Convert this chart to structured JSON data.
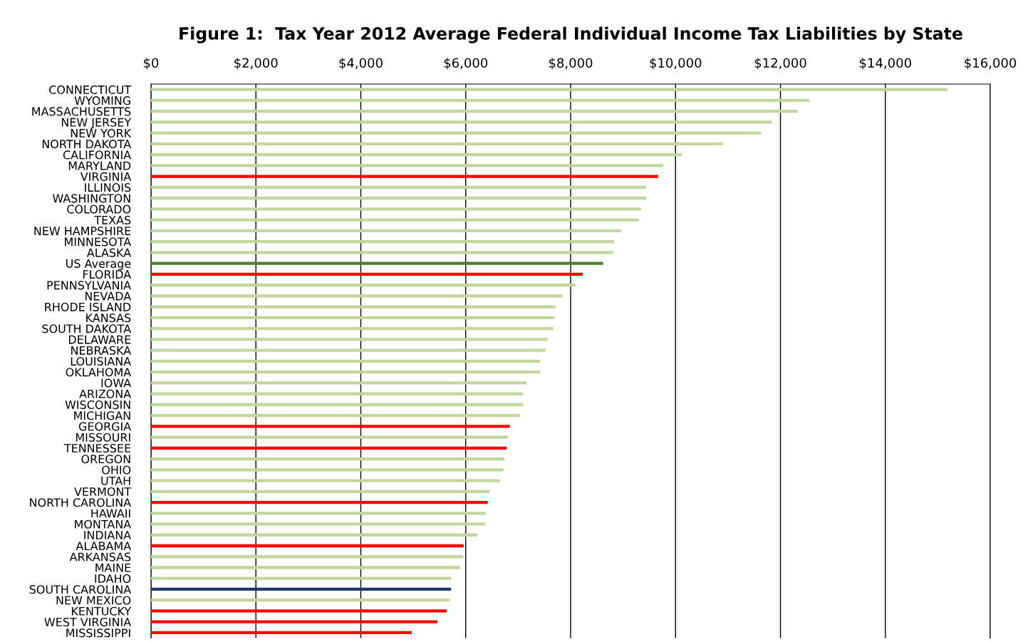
{
  "chart_data": {
    "type": "bar",
    "orientation": "horizontal",
    "title": "Figure 1:  Tax Year 2012 Average Federal Individual Income Tax Liabilities by State",
    "categories": [
      "CONNECTICUT",
      "WYOMING",
      "MASSACHUSETTS",
      "NEW JERSEY",
      "NEW YORK",
      "NORTH DAKOTA",
      "CALIFORNIA",
      "MARYLAND",
      "VIRGINIA",
      "ILLINOIS",
      "WASHINGTON",
      "COLORADO",
      "TEXAS",
      "NEW HAMPSHIRE",
      "MINNESOTA",
      "ALASKA",
      "US Average",
      "FLORIDA",
      "PENNSYLVANIA",
      "NEVADA",
      "RHODE ISLAND",
      "KANSAS",
      "SOUTH DAKOTA",
      "DELAWARE",
      "NEBRASKA",
      "LOUISIANA",
      "OKLAHOMA",
      "IOWA",
      "ARIZONA",
      "WISCONSIN",
      "MICHIGAN",
      "GEORGIA",
      "MISSOURI",
      "TENNESSEE",
      "OREGON",
      "OHIO",
      "UTAH",
      "VERMONT",
      "NORTH CAROLINA",
      "HAWAII",
      "MONTANA",
      "INDIANA",
      "ALABAMA",
      "ARKANSAS",
      "MAINE",
      "IDAHO",
      "SOUTH CAROLINA",
      "NEW MEXICO",
      "KENTUCKY",
      "WEST VIRGINIA",
      "MISSISSIPPI"
    ],
    "values": [
      15180,
      12550,
      12330,
      11830,
      11630,
      10910,
      10120,
      9760,
      9670,
      9440,
      9440,
      9340,
      9300,
      8960,
      8830,
      8810,
      8620,
      8230,
      8090,
      7840,
      7710,
      7690,
      7670,
      7560,
      7520,
      7420,
      7420,
      7160,
      7090,
      7090,
      7030,
      6840,
      6800,
      6780,
      6740,
      6720,
      6650,
      6460,
      6420,
      6380,
      6370,
      6220,
      5960,
      5950,
      5890,
      5720,
      5720,
      5700,
      5640,
      5460,
      4970
    ],
    "colors": [
      "#c3d69b",
      "#c3d69b",
      "#c3d69b",
      "#c3d69b",
      "#c3d69b",
      "#c3d69b",
      "#c3d69b",
      "#c3d69b",
      "#ff0000",
      "#c3d69b",
      "#c3d69b",
      "#c3d69b",
      "#c3d69b",
      "#c3d69b",
      "#c3d69b",
      "#c3d69b",
      "#4f7f2a",
      "#ff0000",
      "#c3d69b",
      "#c3d69b",
      "#c3d69b",
      "#c3d69b",
      "#c3d69b",
      "#c3d69b",
      "#c3d69b",
      "#c3d69b",
      "#c3d69b",
      "#c3d69b",
      "#c3d69b",
      "#c3d69b",
      "#c3d69b",
      "#ff0000",
      "#c3d69b",
      "#ff0000",
      "#c3d69b",
      "#c3d69b",
      "#c3d69b",
      "#c3d69b",
      "#ff0000",
      "#c3d69b",
      "#c3d69b",
      "#c3d69b",
      "#ff0000",
      "#c3d69b",
      "#c3d69b",
      "#c3d69b",
      "#1f3864",
      "#c3d69b",
      "#ff0000",
      "#ff0000",
      "#ff0000"
    ],
    "xlim": [
      0,
      16000
    ],
    "xticks": [
      {
        "value": 0,
        "label": "$0"
      },
      {
        "value": 2000,
        "label": "$2,000"
      },
      {
        "value": 4000,
        "label": "$4,000"
      },
      {
        "value": 6000,
        "label": "$6,000"
      },
      {
        "value": 8000,
        "label": "$8,000"
      },
      {
        "value": 10000,
        "label": "$10,000"
      },
      {
        "value": 12000,
        "label": "$12,000"
      },
      {
        "value": 14000,
        "label": "$14,000"
      },
      {
        "value": 16000,
        "label": "$16,000"
      }
    ],
    "grid": "x"
  }
}
